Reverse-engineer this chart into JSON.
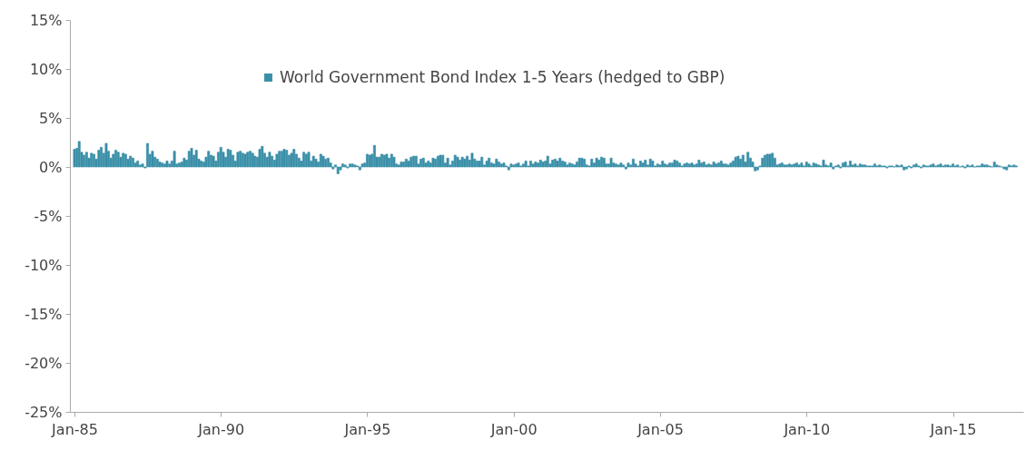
{
  "chart_data": {
    "type": "bar",
    "x": [
      "1985-01",
      "1985-02",
      "1985-03",
      "1985-04",
      "1985-05",
      "1985-06",
      "1985-07",
      "1985-08",
      "1985-09",
      "1985-10",
      "1985-11",
      "1985-12",
      "1986-01",
      "1986-02",
      "1986-03",
      "1986-04",
      "1986-05",
      "1986-06",
      "1986-07",
      "1986-08",
      "1986-09",
      "1986-10",
      "1986-11",
      "1986-12",
      "1987-01",
      "1987-02",
      "1987-03",
      "1987-04",
      "1987-05",
      "1987-06",
      "1987-07",
      "1987-08",
      "1987-09",
      "1987-10",
      "1987-11",
      "1987-12",
      "1988-01",
      "1988-02",
      "1988-03",
      "1988-04",
      "1988-05",
      "1988-06",
      "1988-07",
      "1988-08",
      "1988-09",
      "1988-10",
      "1988-11",
      "1988-12",
      "1989-01",
      "1989-02",
      "1989-03",
      "1989-04",
      "1989-05",
      "1989-06",
      "1989-07",
      "1989-08",
      "1989-09",
      "1989-10",
      "1989-11",
      "1989-12",
      "1990-01",
      "1990-02",
      "1990-03",
      "1990-04",
      "1990-05",
      "1990-06",
      "1990-07",
      "1990-08",
      "1990-09",
      "1990-10",
      "1990-11",
      "1990-12",
      "1991-01",
      "1991-02",
      "1991-03",
      "1991-04",
      "1991-05",
      "1991-06",
      "1991-07",
      "1991-08",
      "1991-09",
      "1991-10",
      "1991-11",
      "1991-12",
      "1992-01",
      "1992-02",
      "1992-03",
      "1992-04",
      "1992-05",
      "1992-06",
      "1992-07",
      "1992-08",
      "1992-09",
      "1992-10",
      "1992-11",
      "1992-12",
      "1993-01",
      "1993-02",
      "1993-03",
      "1993-04",
      "1993-05",
      "1993-06",
      "1993-07",
      "1993-08",
      "1993-09",
      "1993-10",
      "1993-11",
      "1993-12",
      "1994-01",
      "1994-02",
      "1994-03",
      "1994-04",
      "1994-05",
      "1994-06",
      "1994-07",
      "1994-08",
      "1994-09",
      "1994-10",
      "1994-11",
      "1994-12",
      "1995-01",
      "1995-02",
      "1995-03",
      "1995-04",
      "1995-05",
      "1995-06",
      "1995-07",
      "1995-08",
      "1995-09",
      "1995-10",
      "1995-11",
      "1995-12",
      "1996-01",
      "1996-02",
      "1996-03",
      "1996-04",
      "1996-05",
      "1996-06",
      "1996-07",
      "1996-08",
      "1996-09",
      "1996-10",
      "1996-11",
      "1996-12",
      "1997-01",
      "1997-02",
      "1997-03",
      "1997-04",
      "1997-05",
      "1997-06",
      "1997-07",
      "1997-08",
      "1997-09",
      "1997-10",
      "1997-11",
      "1997-12",
      "1998-01",
      "1998-02",
      "1998-03",
      "1998-04",
      "1998-05",
      "1998-06",
      "1998-07",
      "1998-08",
      "1998-09",
      "1998-10",
      "1998-11",
      "1998-12",
      "1999-01",
      "1999-02",
      "1999-03",
      "1999-04",
      "1999-05",
      "1999-06",
      "1999-07",
      "1999-08",
      "1999-09",
      "1999-10",
      "1999-11",
      "1999-12",
      "2000-01",
      "2000-02",
      "2000-03",
      "2000-04",
      "2000-05",
      "2000-06",
      "2000-07",
      "2000-08",
      "2000-09",
      "2000-10",
      "2000-11",
      "2000-12",
      "2001-01",
      "2001-02",
      "2001-03",
      "2001-04",
      "2001-05",
      "2001-06",
      "2001-07",
      "2001-08",
      "2001-09",
      "2001-10",
      "2001-11",
      "2001-12",
      "2002-01",
      "2002-02",
      "2002-03",
      "2002-04",
      "2002-05",
      "2002-06",
      "2002-07",
      "2002-08",
      "2002-09",
      "2002-10",
      "2002-11",
      "2002-12",
      "2003-01",
      "2003-02",
      "2003-03",
      "2003-04",
      "2003-05",
      "2003-06",
      "2003-07",
      "2003-08",
      "2003-09",
      "2003-10",
      "2003-11",
      "2003-12",
      "2004-01",
      "2004-02",
      "2004-03",
      "2004-04",
      "2004-05",
      "2004-06",
      "2004-07",
      "2004-08",
      "2004-09",
      "2004-10",
      "2004-11",
      "2004-12",
      "2005-01",
      "2005-02",
      "2005-03",
      "2005-04",
      "2005-05",
      "2005-06",
      "2005-07",
      "2005-08",
      "2005-09",
      "2005-10",
      "2005-11",
      "2005-12",
      "2006-01",
      "2006-02",
      "2006-03",
      "2006-04",
      "2006-05",
      "2006-06",
      "2006-07",
      "2006-08",
      "2006-09",
      "2006-10",
      "2006-11",
      "2006-12",
      "2007-01",
      "2007-02",
      "2007-03",
      "2007-04",
      "2007-05",
      "2007-06",
      "2007-07",
      "2007-08",
      "2007-09",
      "2007-10",
      "2007-11",
      "2007-12",
      "2008-01",
      "2008-02",
      "2008-03",
      "2008-04",
      "2008-05",
      "2008-06",
      "2008-07",
      "2008-08",
      "2008-09",
      "2008-10",
      "2008-11",
      "2008-12",
      "2009-01",
      "2009-02",
      "2009-03",
      "2009-04",
      "2009-05",
      "2009-06",
      "2009-07",
      "2009-08",
      "2009-09",
      "2009-10",
      "2009-11",
      "2009-12",
      "2010-01",
      "2010-02",
      "2010-03",
      "2010-04",
      "2010-05",
      "2010-06",
      "2010-07",
      "2010-08",
      "2010-09",
      "2010-10",
      "2010-11",
      "2010-12",
      "2011-01",
      "2011-02",
      "2011-03",
      "2011-04",
      "2011-05",
      "2011-06",
      "2011-07",
      "2011-08",
      "2011-09",
      "2011-10",
      "2011-11",
      "2011-12",
      "2012-01",
      "2012-02",
      "2012-03",
      "2012-04",
      "2012-05",
      "2012-06",
      "2012-07",
      "2012-08",
      "2012-09",
      "2012-10",
      "2012-11",
      "2012-12",
      "2013-01",
      "2013-02",
      "2013-03",
      "2013-04",
      "2013-05",
      "2013-06",
      "2013-07",
      "2013-08",
      "2013-09",
      "2013-10",
      "2013-11",
      "2013-12",
      "2014-01",
      "2014-02",
      "2014-03",
      "2014-04",
      "2014-05",
      "2014-06",
      "2014-07",
      "2014-08",
      "2014-09",
      "2014-10",
      "2014-11",
      "2014-12",
      "2015-01",
      "2015-02",
      "2015-03",
      "2015-04",
      "2015-05",
      "2015-06",
      "2015-07",
      "2015-08",
      "2015-09",
      "2015-10",
      "2015-11",
      "2015-12",
      "2016-01",
      "2016-02",
      "2016-03",
      "2016-04",
      "2016-05",
      "2016-06",
      "2016-07",
      "2016-08",
      "2016-09",
      "2016-10",
      "2016-11",
      "2016-12",
      "2017-01",
      "2017-02",
      "2017-03"
    ],
    "series": [
      {
        "name": "World Government Bond Index 1-5 Years (hedged to GBP)",
        "color": "#3a8fa8",
        "values": [
          1.8,
          1.9,
          2.6,
          1.5,
          1.2,
          1.5,
          0.9,
          1.4,
          1.3,
          0.8,
          1.7,
          2.0,
          1.4,
          2.4,
          1.6,
          0.9,
          1.3,
          1.7,
          1.5,
          1.0,
          1.4,
          1.3,
          0.8,
          1.1,
          0.9,
          0.4,
          0.6,
          0.2,
          0.3,
          -0.1,
          2.4,
          1.3,
          1.6,
          1.0,
          0.8,
          0.5,
          0.4,
          0.3,
          0.6,
          0.3,
          0.6,
          1.6,
          0.3,
          0.4,
          0.5,
          0.9,
          0.7,
          1.6,
          1.9,
          1.2,
          1.7,
          0.8,
          0.6,
          0.5,
          1.0,
          1.6,
          1.2,
          1.1,
          0.6,
          1.5,
          2.0,
          1.5,
          1.0,
          1.8,
          1.7,
          1.2,
          0.6,
          1.5,
          1.6,
          1.4,
          1.3,
          1.5,
          1.6,
          1.4,
          1.1,
          1.0,
          1.8,
          2.1,
          1.4,
          1.0,
          1.5,
          1.1,
          0.7,
          1.3,
          1.6,
          1.6,
          1.8,
          1.7,
          1.2,
          1.4,
          1.8,
          1.3,
          0.9,
          0.6,
          1.5,
          1.3,
          1.5,
          0.6,
          1.1,
          0.8,
          0.5,
          1.3,
          1.1,
          0.8,
          0.9,
          0.4,
          -0.2,
          0.2,
          -0.7,
          -0.3,
          0.3,
          0.2,
          -0.1,
          0.3,
          0.3,
          0.2,
          0.1,
          -0.3,
          0.3,
          0.4,
          1.3,
          1.2,
          1.3,
          2.2,
          1.0,
          1.0,
          1.3,
          1.2,
          1.3,
          0.9,
          1.3,
          1.0,
          0.3,
          0.2,
          0.5,
          0.5,
          0.8,
          0.6,
          1.0,
          1.1,
          1.1,
          0.3,
          0.8,
          0.9,
          0.4,
          0.6,
          0.4,
          0.9,
          0.8,
          1.1,
          1.2,
          1.2,
          0.4,
          0.9,
          0.2,
          0.6,
          1.2,
          1.0,
          0.7,
          1.0,
          0.8,
          1.1,
          0.7,
          1.4,
          0.8,
          0.6,
          0.6,
          1.0,
          0.2,
          0.6,
          0.9,
          0.4,
          0.3,
          0.8,
          0.5,
          0.3,
          0.4,
          0.1,
          -0.3,
          0.3,
          0.2,
          0.3,
          0.4,
          0.1,
          0.3,
          0.6,
          0.1,
          0.6,
          0.3,
          0.5,
          0.4,
          0.7,
          0.5,
          0.6,
          1.1,
          0.3,
          0.7,
          0.8,
          0.6,
          0.9,
          0.6,
          0.5,
          0.2,
          0.4,
          0.3,
          0.2,
          0.5,
          0.9,
          0.9,
          0.8,
          0.2,
          0.1,
          0.8,
          0.4,
          0.9,
          0.7,
          1.0,
          0.9,
          0.3,
          0.3,
          0.9,
          0.4,
          0.3,
          0.2,
          0.4,
          0.2,
          -0.2,
          0.4,
          0.2,
          0.8,
          0.3,
          0.1,
          0.6,
          0.4,
          0.7,
          0.2,
          0.8,
          0.6,
          0.1,
          0.3,
          0.2,
          0.6,
          0.3,
          0.2,
          0.4,
          0.4,
          0.7,
          0.6,
          0.4,
          0.1,
          0.3,
          0.4,
          0.3,
          0.4,
          0.2,
          0.3,
          0.7,
          0.4,
          0.5,
          0.2,
          0.3,
          0.2,
          0.5,
          0.3,
          0.4,
          0.6,
          0.3,
          0.3,
          0.2,
          0.4,
          0.6,
          1.0,
          1.1,
          0.8,
          1.2,
          0.5,
          1.5,
          0.9,
          0.5,
          -0.4,
          -0.3,
          0.1,
          0.9,
          1.2,
          1.3,
          1.3,
          1.4,
          0.9,
          0.2,
          0.3,
          0.4,
          0.2,
          0.2,
          0.3,
          0.2,
          0.3,
          0.4,
          0.2,
          0.4,
          0.1,
          0.5,
          0.3,
          0.1,
          0.4,
          0.3,
          0.2,
          0.1,
          0.7,
          0.2,
          0.1,
          0.4,
          -0.2,
          0.1,
          0.2,
          -0.1,
          0.4,
          0.5,
          0.1,
          0.6,
          0.2,
          0.3,
          0.1,
          0.3,
          0.2,
          0.2,
          0.1,
          0.1,
          0.1,
          0.3,
          0.1,
          0.2,
          0.1,
          0.1,
          -0.1,
          0.1,
          0.1,
          0.0,
          0.2,
          0.1,
          0.2,
          -0.3,
          -0.2,
          0.1,
          -0.1,
          0.2,
          0.3,
          0.1,
          -0.1,
          0.2,
          0.1,
          0.1,
          0.2,
          0.3,
          0.1,
          0.2,
          0.3,
          0.1,
          0.2,
          0.2,
          0.1,
          0.3,
          0.1,
          0.2,
          0.0,
          0.1,
          -0.1,
          0.2,
          0.1,
          0.2,
          0.0,
          0.1,
          0.1,
          0.3,
          0.2,
          0.2,
          0.1,
          0.0,
          0.5,
          0.2,
          0.1,
          0.0,
          -0.2,
          -0.3,
          0.2,
          0.1,
          0.2,
          0.1
        ]
      }
    ],
    "xlim": [
      "1985-01",
      "2017-04"
    ],
    "xticks": [
      {
        "value": "1985-01",
        "label": "Jan-85"
      },
      {
        "value": "1990-01",
        "label": "Jan-90"
      },
      {
        "value": "1995-01",
        "label": "Jan-95"
      },
      {
        "value": "2000-01",
        "label": "Jan-00"
      },
      {
        "value": "2005-01",
        "label": "Jan-05"
      },
      {
        "value": "2010-01",
        "label": "Jan-10"
      },
      {
        "value": "2015-01",
        "label": "Jan-15"
      }
    ],
    "ylim": [
      -25,
      15
    ],
    "yticks": [
      {
        "value": 15,
        "label": "15%"
      },
      {
        "value": 10,
        "label": "10%"
      },
      {
        "value": 5,
        "label": "5%"
      },
      {
        "value": 0,
        "label": "0%"
      },
      {
        "value": -5,
        "label": "-5%"
      },
      {
        "value": -10,
        "label": "-10%"
      },
      {
        "value": -15,
        "label": "-15%"
      },
      {
        "value": -20,
        "label": "-20%"
      },
      {
        "value": -25,
        "label": "-25%"
      }
    ],
    "grid": false,
    "legend": "top"
  }
}
